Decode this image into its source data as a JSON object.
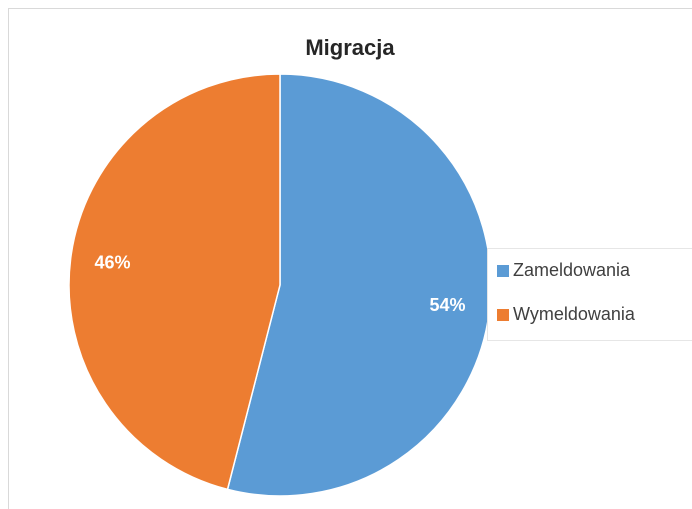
{
  "chart_data": {
    "type": "pie",
    "title": "Migracja",
    "categories": [
      "Zameldowania",
      "Wymeldowania"
    ],
    "values": [
      54,
      46
    ],
    "value_labels": [
      "54%",
      "46%"
    ],
    "colors": [
      "#5b9bd5",
      "#ed7d31"
    ],
    "legend": "right"
  }
}
